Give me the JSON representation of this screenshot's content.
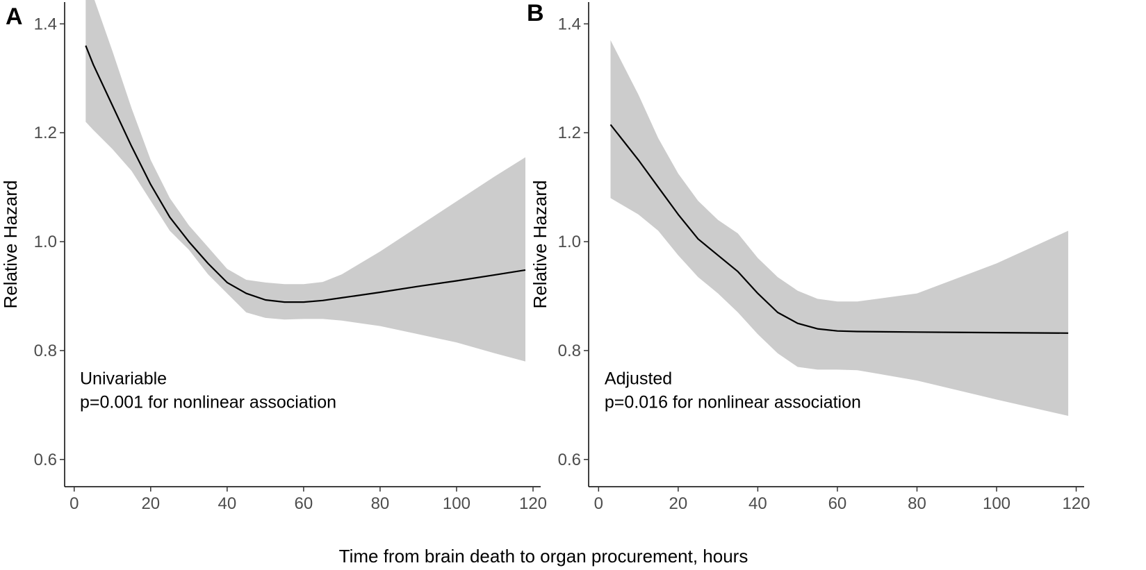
{
  "figure": {
    "shared_xlabel": "Time from brain death to organ procurement, hours"
  },
  "chart_data": [
    {
      "type": "line",
      "panel_label": "A",
      "title": "",
      "xlabel": "",
      "ylabel": "Relative Hazard",
      "xlim": [
        -2.5,
        122
      ],
      "ylim": [
        0.55,
        1.44
      ],
      "xticks": [
        0,
        20,
        40,
        60,
        80,
        100,
        120
      ],
      "yticks": [
        0.6,
        0.8,
        1.0,
        1.2,
        1.4
      ],
      "ytick_labels": [
        "0.6",
        "0.8",
        "1.0",
        "1.2",
        "1.4"
      ],
      "grid": false,
      "line_color": "#000000",
      "band_color": "#cccccc",
      "annotation": [
        "Univariable",
        "p=0.001 for nonlinear association"
      ],
      "x": [
        3,
        5,
        10,
        15,
        20,
        25,
        30,
        35,
        40,
        45,
        50,
        55,
        60,
        65,
        70,
        80,
        90,
        100,
        110,
        118
      ],
      "y": [
        1.36,
        1.325,
        1.25,
        1.175,
        1.105,
        1.045,
        1.0,
        0.96,
        0.925,
        0.905,
        0.893,
        0.889,
        0.889,
        0.892,
        0.897,
        0.907,
        0.918,
        0.928,
        0.939,
        0.948
      ],
      "ci_lower": [
        1.22,
        1.205,
        1.17,
        1.13,
        1.075,
        1.02,
        0.985,
        0.94,
        0.905,
        0.87,
        0.86,
        0.857,
        0.858,
        0.858,
        0.855,
        0.845,
        0.83,
        0.815,
        0.795,
        0.78
      ],
      "ci_upper": [
        1.5,
        1.45,
        1.35,
        1.245,
        1.15,
        1.08,
        1.03,
        0.99,
        0.95,
        0.93,
        0.925,
        0.922,
        0.922,
        0.926,
        0.94,
        0.982,
        1.028,
        1.074,
        1.12,
        1.155
      ]
    },
    {
      "type": "line",
      "panel_label": "B",
      "title": "",
      "xlabel": "",
      "ylabel": "Relative Hazard",
      "xlim": [
        -2.5,
        122
      ],
      "ylim": [
        0.55,
        1.44
      ],
      "xticks": [
        0,
        20,
        40,
        60,
        80,
        100,
        120
      ],
      "yticks": [
        0.6,
        0.8,
        1.0,
        1.2,
        1.4
      ],
      "ytick_labels": [
        "0.6",
        "0.8",
        "1.0",
        "1.2",
        "1.4"
      ],
      "grid": false,
      "line_color": "#000000",
      "band_color": "#cccccc",
      "annotation": [
        "Adjusted",
        "p=0.016 for nonlinear association"
      ],
      "x": [
        3,
        10,
        15,
        20,
        25,
        30,
        35,
        40,
        45,
        50,
        55,
        60,
        65,
        80,
        100,
        118
      ],
      "y": [
        1.215,
        1.15,
        1.1,
        1.05,
        1.005,
        0.975,
        0.945,
        0.905,
        0.87,
        0.85,
        0.84,
        0.836,
        0.835,
        0.834,
        0.833,
        0.832
      ],
      "ci_lower": [
        1.08,
        1.05,
        1.02,
        0.975,
        0.935,
        0.905,
        0.87,
        0.83,
        0.795,
        0.77,
        0.765,
        0.765,
        0.764,
        0.745,
        0.71,
        0.68
      ],
      "ci_upper": [
        1.37,
        1.27,
        1.19,
        1.125,
        1.075,
        1.04,
        1.015,
        0.97,
        0.935,
        0.91,
        0.895,
        0.89,
        0.89,
        0.905,
        0.96,
        1.02
      ]
    }
  ]
}
